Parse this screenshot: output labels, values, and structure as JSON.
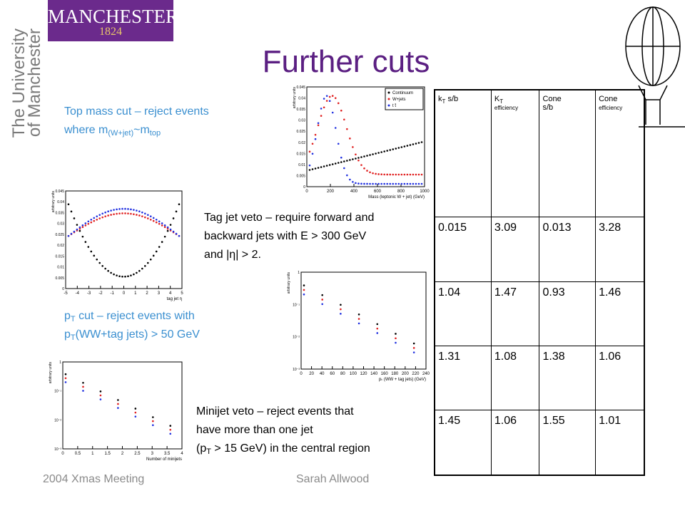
{
  "header": {
    "logo": "MANCHESTER",
    "logo_year": "1824",
    "university": [
      "The University",
      "of Manchester"
    ],
    "title": "Further cuts"
  },
  "blocks": [
    {
      "lines": [
        [
          "Top mass cut – reject events"
        ],
        [
          "where m",
          "(W+jet)",
          "~m",
          "top"
        ]
      ]
    },
    {
      "lines": [
        [
          "Tag jet veto – require forward and"
        ],
        [
          "backward jets with E > 300 GeV"
        ],
        [
          "and |η| > 2."
        ]
      ]
    },
    {
      "lines": [
        [
          "p",
          "T",
          " cut – reject events with"
        ],
        [
          "p",
          "T",
          "(WW+tag jets) > 50 GeV"
        ]
      ]
    },
    {
      "lines": [
        [
          "Minijet veto – reject events that"
        ],
        [
          " have more than one jet"
        ],
        [
          "(p",
          "T",
          " > 15 GeV) in the central region"
        ]
      ]
    }
  ],
  "figures": [
    {
      "ylabel": "arbitrary units",
      "xlabel": "Mass (leptonic W + jet) (GeV)",
      "xticks": [
        "0",
        "200",
        "400",
        "600",
        "800",
        "1000"
      ],
      "yticks": [
        "0",
        "0.005",
        "0.01",
        "0.015",
        "0.02",
        "0.025",
        "0.03",
        "0.035",
        "0.04",
        "0.045"
      ],
      "legend": [
        "Continuum",
        "W+jets",
        "t t̄"
      ]
    },
    {
      "ylabel": "arbitrary units",
      "xlabel": "tag jet η",
      "xticks": [
        "-5",
        "-4",
        "-3",
        "-2",
        "-1",
        "0",
        "1",
        "2",
        "3",
        "4",
        "5"
      ],
      "yticks": [
        "0",
        "0.005",
        "0.01",
        "0.015",
        "0.02",
        "0.025",
        "0.03",
        "0.035",
        "0.04",
        "0.045"
      ]
    },
    {
      "ylabel": "arbitrary units",
      "xlabel": "pₜ (WW + tag jets) (GeV)",
      "xticks": [
        "0",
        "20",
        "40",
        "60",
        "80",
        "100",
        "120",
        "140",
        "160",
        "180",
        "200",
        "220",
        "240"
      ],
      "yticks": [
        "10⁻³",
        "10⁻²",
        "10⁻¹",
        "1"
      ]
    },
    {
      "ylabel": "arbitrary units",
      "xlabel": "Number of minijets",
      "xticks": [
        "0",
        "0.5",
        "1",
        "1.5",
        "2",
        "2.5",
        "3",
        "3.5",
        "4"
      ],
      "yticks": [
        "10⁻³",
        "10⁻²",
        "10⁻¹",
        "1"
      ]
    }
  ],
  "table": {
    "header": [
      [
        "k",
        "T",
        " s/b"
      ],
      [
        "K",
        "T",
        " efficiency"
      ],
      [
        "Cone",
        "s/b"
      ],
      [
        "Cone",
        "efficiency"
      ]
    ],
    "rows": [
      [
        "0.015",
        "3.09",
        "0.013",
        "3.28"
      ],
      [
        "1.04",
        "1.47",
        "0.93",
        "1.46"
      ],
      [
        "1.31",
        "1.08",
        "1.38",
        "1.06"
      ],
      [
        "1.45",
        "1.06",
        "1.55",
        "1.01"
      ]
    ]
  },
  "footer": {
    "left": "2004 Xmas Meeting",
    "center": "Sarah Allwood"
  }
}
